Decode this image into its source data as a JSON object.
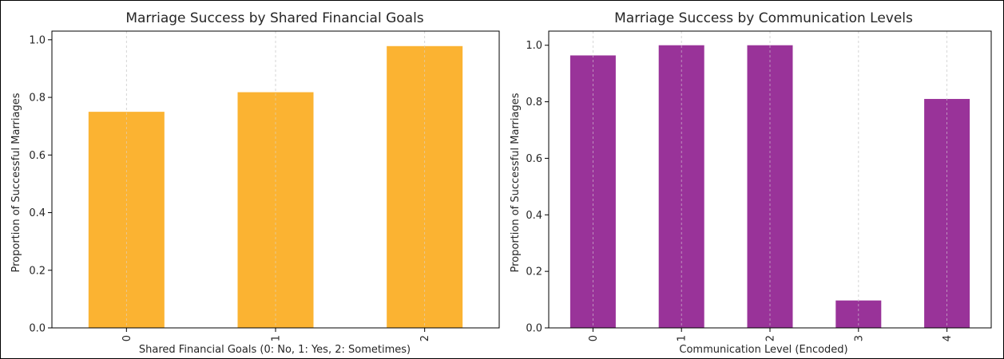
{
  "chart_data": [
    {
      "type": "bar",
      "title": "Marriage Success by Shared Financial Goals",
      "xlabel": "Shared Financial Goals (0: No, 1: Yes, 2: Sometimes)",
      "ylabel": "Proportion of Successful Marriages",
      "categories": [
        "0",
        "1",
        "2"
      ],
      "values": [
        0.75,
        0.818,
        0.978
      ],
      "ylim": [
        0,
        1.03
      ],
      "yticks": [
        "0.0",
        "0.2",
        "0.4",
        "0.6",
        "0.8",
        "1.0"
      ],
      "bar_color": "#fbb332",
      "grid": "vertical dashed",
      "legend": "none"
    },
    {
      "type": "bar",
      "title": "Marriage Success by Communication Levels",
      "xlabel": "Communication Level (Encoded)",
      "ylabel": "Proportion of Successful Marriages",
      "categories": [
        "0",
        "1",
        "2",
        "3",
        "4"
      ],
      "values": [
        0.964,
        1.0,
        1.0,
        0.097,
        0.81
      ],
      "ylim": [
        0,
        1.05
      ],
      "yticks": [
        "0.0",
        "0.2",
        "0.4",
        "0.6",
        "0.8",
        "1.0"
      ],
      "bar_color": "#993399",
      "grid": "vertical dashed",
      "legend": "none"
    }
  ]
}
